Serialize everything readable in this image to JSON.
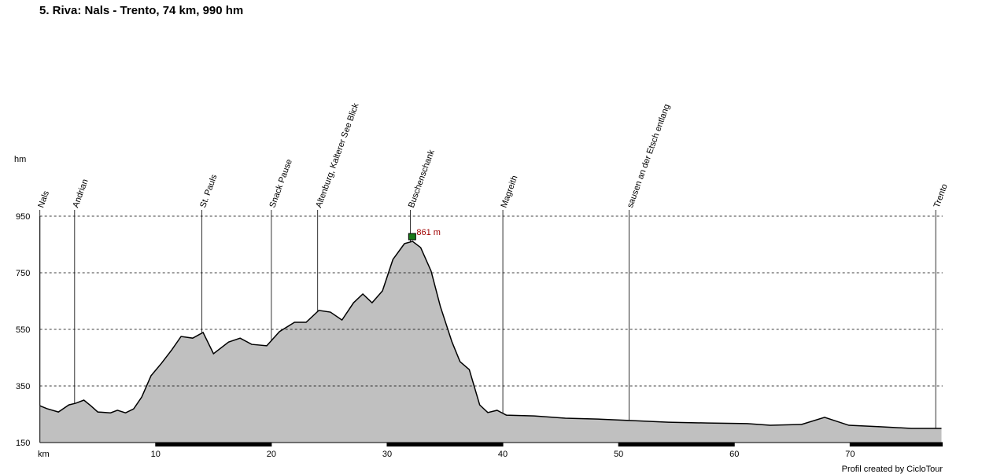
{
  "chart_data": {
    "type": "area",
    "title": "5. Riva: Nals - Trento, 74 km, 990 hm",
    "y_axis_label": "hm",
    "x_axis_label": "km",
    "credit": "Profil created by CicloTour",
    "color": "#c0c0c0",
    "x": [
      0,
      0.6,
      1.6,
      2.5,
      3.1,
      3.8,
      4.4,
      5.0,
      6.1,
      6.7,
      7.4,
      8.1,
      8.8,
      9.6,
      10.5,
      11.4,
      12.2,
      13.2,
      14.1,
      15.0,
      16.3,
      17.3,
      18.3,
      19.6,
      20.7,
      22.0,
      23.0,
      24.1,
      25.1,
      26.1,
      27.1,
      27.9,
      28.7,
      29.6,
      30.5,
      31.5,
      32.2,
      32.9,
      33.8,
      34.6,
      35.6,
      36.3,
      37.1,
      38.0,
      38.7,
      39.5,
      40.3,
      42.7,
      45.4,
      48.2,
      50.9,
      54.3,
      57.7,
      61.1,
      63.1,
      65.8,
      67.8,
      69.9,
      72.6,
      75.3,
      77.9
    ],
    "values": [
      280,
      270,
      258,
      283,
      289,
      300,
      280,
      258,
      255,
      264,
      255,
      269,
      311,
      386,
      430,
      478,
      525,
      519,
      539,
      464,
      505,
      519,
      497,
      492,
      542,
      575,
      575,
      617,
      611,
      583,
      644,
      675,
      644,
      686,
      797,
      853,
      861,
      839,
      756,
      631,
      506,
      436,
      408,
      283,
      256,
      264,
      247,
      244,
      236,
      233,
      228,
      222,
      219,
      217,
      211,
      214,
      239,
      211,
      206,
      200,
      200
    ],
    "xlim": [
      0,
      78
    ],
    "ylim": [
      150,
      950
    ],
    "xticks": [
      10,
      20,
      30,
      40,
      50,
      60,
      70
    ],
    "yticks": [
      150,
      350,
      550,
      750,
      950
    ],
    "grid": true,
    "waypoints": [
      {
        "label": "Nals",
        "km": 0
      },
      {
        "label": "Andrian",
        "km": 3.0
      },
      {
        "label": "St. Pauls",
        "km": 14.0
      },
      {
        "label": "Snack Pause",
        "km": 20.0
      },
      {
        "label": "Altenburg, Kalterer See Blick",
        "km": 24.0
      },
      {
        "label": "Buschenschank",
        "km": 32.0
      },
      {
        "label": "Magreith",
        "km": 40.0
      },
      {
        "label": "sausen an der Etsch entlang",
        "km": 50.9
      },
      {
        "label": "Trento",
        "km": 77.4
      }
    ],
    "peak": {
      "label": "861 m",
      "km": 32.2,
      "value": 861
    }
  }
}
